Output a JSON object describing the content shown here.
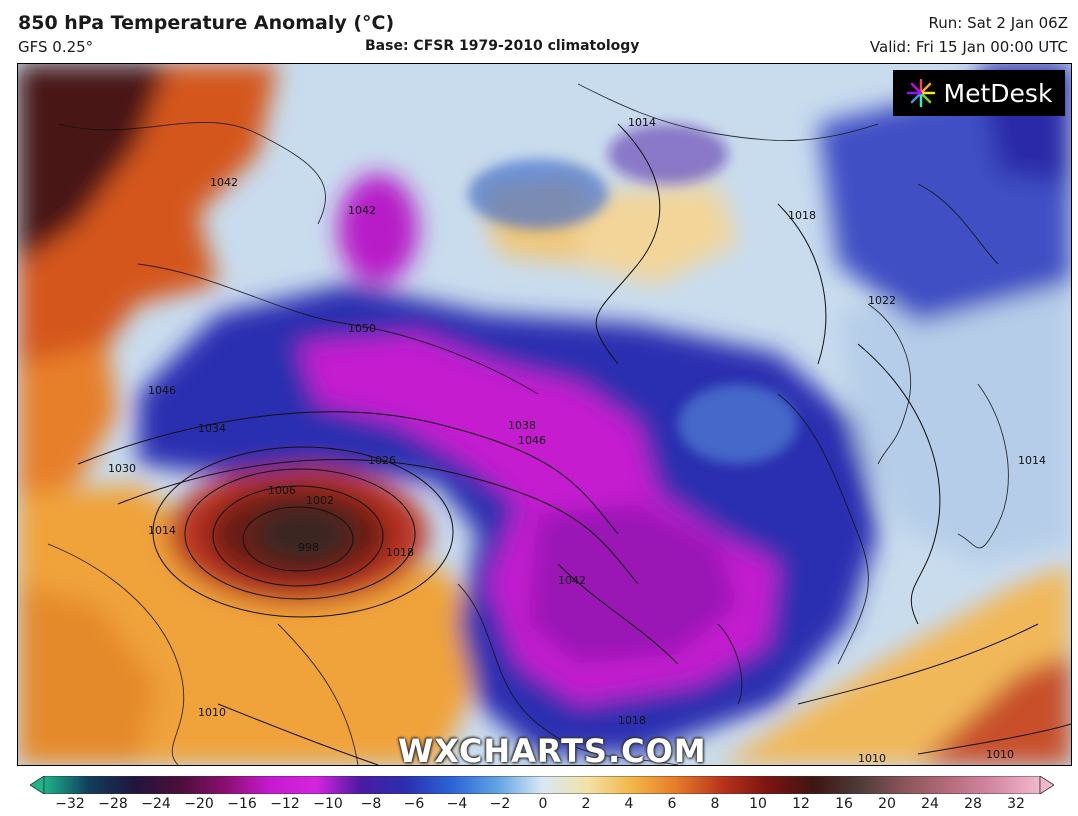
{
  "header": {
    "title": "850 hPa Temperature Anomaly (°C)",
    "model": "GFS 0.25°",
    "base": "Base: CFSR 1979-2010 climatology",
    "run": "Run: Sat 2 Jan 06Z",
    "valid": "Valid: Fri 15 Jan 00:00 UTC"
  },
  "logo": {
    "text": "MetDesk",
    "icon": "metdesk-starburst-icon"
  },
  "watermark": "WXCHARTS.COM",
  "colorbar": {
    "ticks": [
      "−32",
      "−28",
      "−24",
      "−20",
      "−16",
      "−12",
      "−10",
      "−8",
      "−6",
      "−4",
      "−2",
      "0",
      "2",
      "4",
      "6",
      "8",
      "10",
      "12",
      "16",
      "20",
      "24",
      "28",
      "32"
    ],
    "colors": [
      "#1fb38a",
      "#0f3d5c",
      "#21153f",
      "#4a0f3a",
      "#8a0f6f",
      "#c71ad0",
      "#d524e0",
      "#4a1aa3",
      "#2b2fb0",
      "#2c63d6",
      "#5fa2e4",
      "#d8e8f5",
      "#f3e2a6",
      "#f2b548",
      "#e5792a",
      "#b8321c",
      "#7a1410",
      "#3f1512",
      "#4e3a3a",
      "#8a5558",
      "#b66c7c",
      "#d58aa6",
      "#f2b9cd"
    ]
  },
  "isobars": [
    "1042",
    "1050",
    "1046",
    "1034",
    "1030",
    "1026",
    "1014",
    "1006",
    "1002",
    "998",
    "1018",
    "1038",
    "1042",
    "1014",
    "1018",
    "1022",
    "1014",
    "1010",
    "1018",
    "1010",
    "1010",
    "1042",
    "1046"
  ]
}
